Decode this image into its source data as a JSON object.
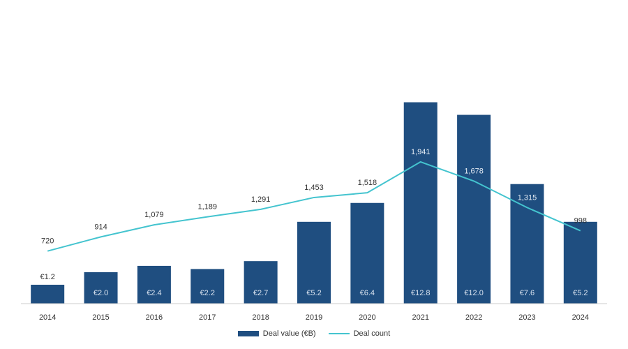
{
  "chart_data": {
    "type": "bar",
    "categories": [
      "2014",
      "2015",
      "2016",
      "2017",
      "2018",
      "2019",
      "2020",
      "2021",
      "2022",
      "2023",
      "2024"
    ],
    "series": [
      {
        "name": "Deal value (€B)",
        "kind": "bar",
        "axis": "left",
        "values": [
          1.2,
          2.0,
          2.4,
          2.2,
          2.7,
          5.2,
          6.4,
          12.8,
          12.0,
          7.6,
          5.2
        ],
        "labels": [
          "€1.2",
          "€2.0",
          "€2.4",
          "€2.2",
          "€2.7",
          "€5.2",
          "€6.4",
          "€12.8",
          "€12.0",
          "€7.6",
          "€5.2"
        ]
      },
      {
        "name": "Deal count",
        "kind": "line",
        "axis": "right",
        "values": [
          720,
          914,
          1079,
          1189,
          1291,
          1453,
          1518,
          1941,
          1678,
          1315,
          998
        ],
        "labels": [
          "720",
          "914",
          "1,079",
          "1,189",
          "1,291",
          "1,453",
          "1,518",
          "1,941",
          "1,678",
          "1,315",
          "998"
        ]
      }
    ],
    "ylim_left": [
      0,
      13
    ],
    "ylim_right": [
      0,
      2800
    ],
    "title": "",
    "xlabel": "",
    "ylabel": "",
    "grid": false,
    "legend_position": "bottom-center"
  },
  "colors": {
    "bar": "#1f4e80",
    "line": "#44c4cf",
    "axis": "#cccccc"
  }
}
